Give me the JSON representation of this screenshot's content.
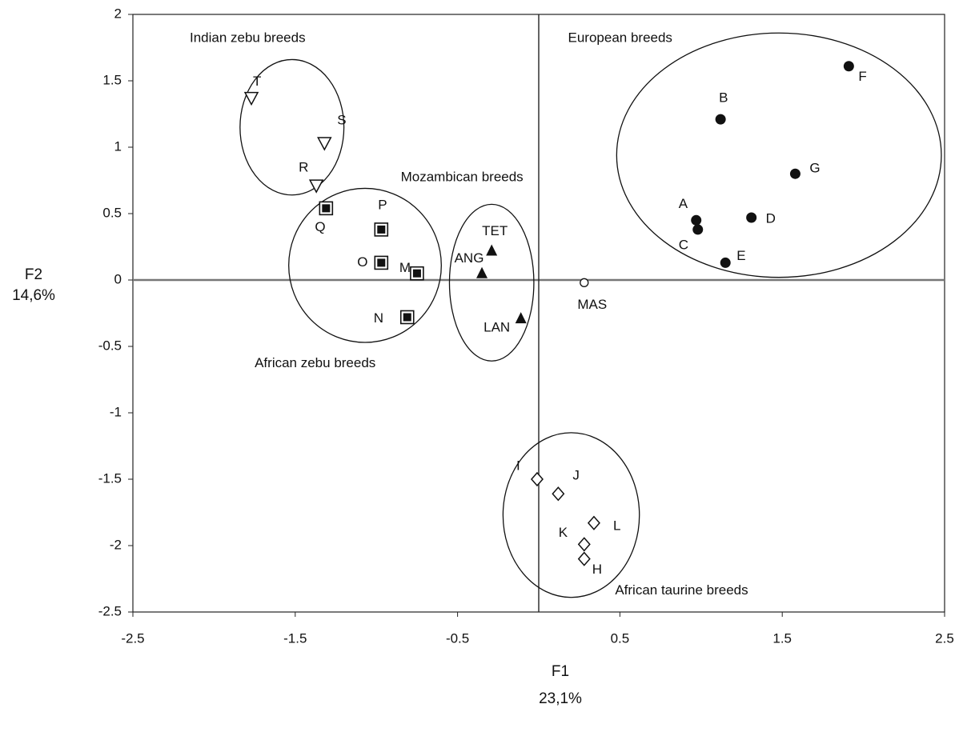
{
  "chart_data": {
    "type": "scatter",
    "title": "",
    "xlabel": "F1",
    "xlabel_pct": "23,1%",
    "ylabel": "F2",
    "ylabel_pct": "14,6%",
    "xlim": [
      -2.5,
      2.5
    ],
    "ylim": [
      -2.5,
      2.0
    ],
    "xticks": [
      {
        "v": -2.5,
        "label": "-2.5"
      },
      {
        "v": -1.5,
        "label": "-1.5"
      },
      {
        "v": -0.5,
        "label": "-0.5"
      },
      {
        "v": 0.5,
        "label": "0.5"
      },
      {
        "v": 1.5,
        "label": "1.5"
      },
      {
        "v": 2.5,
        "label": "2.5"
      }
    ],
    "yticks": [
      {
        "v": 2,
        "label": "2"
      },
      {
        "v": 1.5,
        "label": "1.5"
      },
      {
        "v": 1,
        "label": "1"
      },
      {
        "v": 0.5,
        "label": "0.5"
      },
      {
        "v": 0,
        "label": "0"
      },
      {
        "v": -0.5,
        "label": "-0.5"
      },
      {
        "v": -1,
        "label": "-1"
      },
      {
        "v": -1.5,
        "label": "-1.5"
      },
      {
        "v": -2,
        "label": "-2"
      },
      {
        "v": -2.5,
        "label": "-2.5"
      }
    ],
    "grid": false,
    "reference_lines": {
      "x": 0,
      "y": 0
    },
    "groups": [
      {
        "name": "Indian zebu breeds",
        "marker": "triangle-down-open",
        "ellipse": {
          "cx": -1.52,
          "cy": 1.15,
          "rx": 0.32,
          "ry": 0.51
        },
        "label_at": [
          -2.15,
          1.82
        ],
        "points": [
          {
            "label": "T",
            "x": -1.77,
            "y": 1.37
          },
          {
            "label": "S",
            "x": -1.32,
            "y": 1.03
          },
          {
            "label": "R",
            "x": -1.37,
            "y": 0.71
          }
        ]
      },
      {
        "name": "African zebu breeds",
        "marker": "square-in-square",
        "ellipse": {
          "cx": -1.07,
          "cy": 0.11,
          "rx": 0.47,
          "ry": 0.58
        },
        "label_at": [
          -1.75,
          -0.63
        ],
        "points": [
          {
            "label": "Q",
            "x": -1.31,
            "y": 0.54
          },
          {
            "label": "P",
            "x": -0.97,
            "y": 0.38
          },
          {
            "label": "O",
            "x": -0.97,
            "y": 0.13
          },
          {
            "label": "M",
            "x": -0.75,
            "y": 0.05
          },
          {
            "label": "N",
            "x": -0.81,
            "y": -0.28
          }
        ]
      },
      {
        "name": "Mozambican breeds",
        "marker": "triangle-up-filled",
        "ellipse": {
          "cx": -0.29,
          "cy": -0.02,
          "rx": 0.26,
          "ry": 0.59
        },
        "label_at": [
          -0.85,
          0.77
        ],
        "points": [
          {
            "label": "TET",
            "x": -0.29,
            "y": 0.22
          },
          {
            "label": "ANG",
            "x": -0.35,
            "y": 0.05
          },
          {
            "label": "LAN",
            "x": -0.11,
            "y": -0.29
          }
        ]
      },
      {
        "name": "European breeds",
        "marker": "circle-filled",
        "ellipse": {
          "cx": 1.48,
          "cy": 0.94,
          "rx": 1.0,
          "ry": 0.92
        },
        "label_at": [
          0.18,
          1.82
        ],
        "points": [
          {
            "label": "F",
            "x": 1.91,
            "y": 1.61
          },
          {
            "label": "B",
            "x": 1.12,
            "y": 1.21
          },
          {
            "label": "G",
            "x": 1.58,
            "y": 0.8
          },
          {
            "label": "A",
            "x": 0.97,
            "y": 0.45
          },
          {
            "label": "D",
            "x": 1.31,
            "y": 0.47
          },
          {
            "label": "C",
            "x": 0.98,
            "y": 0.38
          },
          {
            "label": "E",
            "x": 1.15,
            "y": 0.13
          }
        ]
      },
      {
        "name": "African taurine breeds",
        "marker": "diamond-open",
        "ellipse": {
          "cx": 0.2,
          "cy": -1.77,
          "rx": 0.42,
          "ry": 0.62
        },
        "label_at": [
          0.47,
          -2.34
        ],
        "points": [
          {
            "label": "I",
            "x": -0.01,
            "y": -1.5
          },
          {
            "label": "J",
            "x": 0.12,
            "y": -1.61
          },
          {
            "label": "L",
            "x": 0.34,
            "y": -1.83
          },
          {
            "label": "K",
            "x": 0.28,
            "y": -1.99
          },
          {
            "label": "H",
            "x": 0.28,
            "y": -2.1
          }
        ]
      },
      {
        "name": "",
        "marker": "circle-open",
        "ellipse": null,
        "label_at": null,
        "points": [
          {
            "label": "MAS",
            "x": 0.28,
            "y": -0.02
          }
        ]
      }
    ]
  }
}
